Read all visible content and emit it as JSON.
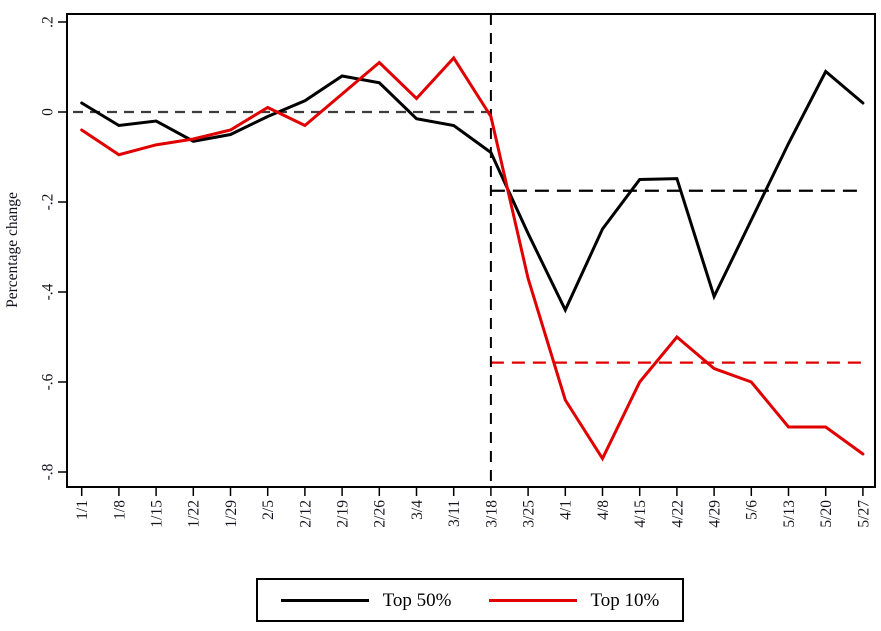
{
  "chart_data": {
    "type": "line",
    "title": "",
    "ylabel": "Percentage change",
    "xlabel": "",
    "categories": [
      "1/1",
      "1/8",
      "1/15",
      "1/22",
      "1/29",
      "2/5",
      "2/12",
      "2/19",
      "2/26",
      "3/4",
      "3/11",
      "3/18",
      "3/25",
      "4/1",
      "4/8",
      "4/15",
      "4/22",
      "4/29",
      "5/6",
      "5/13",
      "5/20",
      "5/27"
    ],
    "series": [
      {
        "name": "Top 50%",
        "color": "#000000",
        "values": [
          0.02,
          -0.03,
          -0.02,
          -0.065,
          -0.05,
          -0.01,
          0.025,
          0.08,
          0.065,
          -0.015,
          -0.03,
          -0.09,
          -0.27,
          -0.44,
          -0.26,
          -0.15,
          -0.148,
          -0.41,
          -0.24,
          -0.07,
          0.09,
          0.02
        ]
      },
      {
        "name": "Top 10%",
        "color": "#e00000",
        "values": [
          -0.04,
          -0.095,
          -0.073,
          -0.06,
          -0.04,
          0.01,
          -0.03,
          0.04,
          0.11,
          0.03,
          0.12,
          -0.01,
          -0.37,
          -0.64,
          -0.77,
          -0.6,
          -0.5,
          -0.57,
          -0.6,
          -0.7,
          -0.7,
          -0.76
        ]
      }
    ],
    "y_ticks": {
      "labels": [
        ".2",
        "0",
        "-.2",
        "-.4",
        "-.6",
        "-.8"
      ],
      "values": [
        0.2,
        0,
        -0.2,
        -0.4,
        -0.6,
        -0.8
      ]
    },
    "ylim": [
      -0.84,
      0.22
    ],
    "x_tick_rotation": -90,
    "y_tick_rotation": -90,
    "grid": false,
    "reference_lines": [
      {
        "orientation": "horizontal",
        "value": 0,
        "from": "1/1",
        "to": "3/18",
        "color": "#3d3d3d",
        "style": "dashed",
        "dash": "10 7",
        "label": "zero baseline (pre 3/18)"
      },
      {
        "orientation": "horizontal",
        "value": -0.175,
        "from": "3/18",
        "to": "5/27",
        "color": "#000000",
        "style": "dashed",
        "dash": "14 8",
        "label": "post 3/18 mean, Top 50%"
      },
      {
        "orientation": "horizontal",
        "value": -0.557,
        "from": "3/18",
        "to": "5/27",
        "color": "#e00000",
        "style": "dashed",
        "dash": "13 8",
        "label": "post 3/18 mean, Top 10%"
      },
      {
        "orientation": "vertical",
        "category": "3/18",
        "color": "#000000",
        "style": "dashed",
        "dash": "11 8",
        "label": "3/18 event line"
      }
    ],
    "legend": {
      "position": "bottom"
    }
  }
}
